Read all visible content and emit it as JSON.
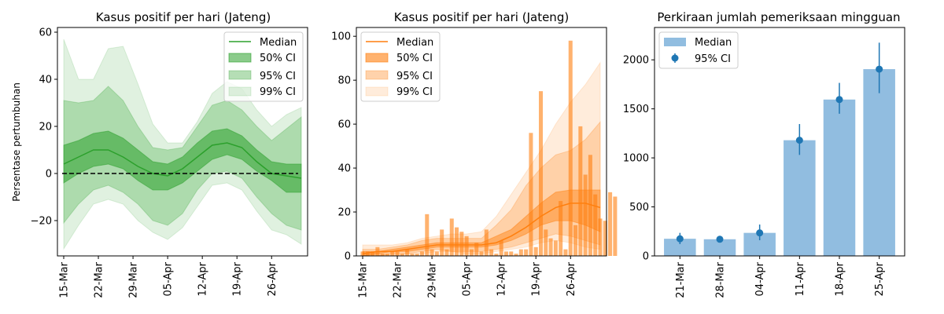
{
  "chart_data": [
    {
      "type": "area",
      "title": "Kasus positif per hari (Jateng)",
      "ylabel": "Persentase pertumbuhan",
      "xlabel": "",
      "ylim": [
        -35,
        62
      ],
      "yticks": [
        -20,
        0,
        20,
        40,
        60
      ],
      "ytick_labels": [
        "−20",
        "0",
        "20",
        "40",
        "60"
      ],
      "x_start": "2020-03-15",
      "xticks": [
        "2020-03-15",
        "2020-03-22",
        "2020-03-29",
        "2020-04-05",
        "2020-04-12",
        "2020-04-19",
        "2020-04-26"
      ],
      "xtick_labels": [
        "15-Mar",
        "22-Mar",
        "29-Mar",
        "05-Apr",
        "12-Apr",
        "19-Apr",
        "26-Apr"
      ],
      "x_end": "2020-05-02",
      "reference_line": 0,
      "legend_position": "top-right",
      "legend": [
        "Median",
        "50% CI",
        "95% CI",
        "99% CI"
      ],
      "colors": {
        "median": "#2ca02c",
        "band": "#2ca02c",
        "refline": "#000000"
      },
      "samples": {
        "x": [
          "2020-03-15",
          "2020-03-18",
          "2020-03-21",
          "2020-03-24",
          "2020-03-27",
          "2020-03-30",
          "2020-04-02",
          "2020-04-05",
          "2020-04-08",
          "2020-04-11",
          "2020-04-14",
          "2020-04-17",
          "2020-04-20",
          "2020-04-23",
          "2020-04-26",
          "2020-04-29",
          "2020-05-02"
        ],
        "median": [
          4,
          7,
          10,
          10,
          7,
          3,
          0,
          -1,
          2,
          7,
          12,
          13,
          11,
          5,
          0,
          -1,
          -2
        ],
        "ci50_low": [
          -4,
          0,
          3,
          4,
          2,
          -3,
          -7,
          -7,
          -4,
          1,
          6,
          8,
          6,
          1,
          -3,
          -8,
          -8
        ],
        "ci50_high": [
          12,
          14,
          17,
          18,
          15,
          10,
          5,
          4,
          7,
          13,
          18,
          19,
          16,
          10,
          5,
          4,
          4
        ],
        "ci95_low": [
          -21,
          -13,
          -7,
          -5,
          -8,
          -13,
          -20,
          -22,
          -17,
          -7,
          0,
          1,
          -2,
          -10,
          -17,
          -22,
          -24
        ],
        "ci95_high": [
          31,
          30,
          31,
          37,
          31,
          20,
          11,
          10,
          11,
          20,
          29,
          31,
          27,
          20,
          14,
          19,
          24
        ],
        "ci99_low": [
          -32,
          -22,
          -13,
          -11,
          -13,
          -20,
          -25,
          -28,
          -23,
          -14,
          -5,
          -4,
          -7,
          -16,
          -24,
          -26,
          -30
        ],
        "ci99_high": [
          57,
          40,
          40,
          53,
          54,
          38,
          21,
          13,
          13,
          22,
          34,
          39,
          36,
          27,
          20,
          25,
          28
        ]
      }
    },
    {
      "type": "area",
      "title": "Kasus positif per hari (Jateng)",
      "xlabel": "",
      "ylabel": "",
      "ylim": [
        0,
        104
      ],
      "yticks": [
        0,
        20,
        40,
        60,
        80,
        100
      ],
      "ytick_labels": [
        "0",
        "20",
        "40",
        "60",
        "80",
        "100"
      ],
      "x_start": "2020-03-15",
      "xticks": [
        "2020-03-15",
        "2020-03-22",
        "2020-03-29",
        "2020-04-05",
        "2020-04-12",
        "2020-04-19",
        "2020-04-26"
      ],
      "xtick_labels": [
        "15-Mar",
        "22-Mar",
        "29-Mar",
        "05-Apr",
        "12-Apr",
        "19-Apr",
        "26-Apr"
      ],
      "x_end": "2020-05-02",
      "legend_position": "top-left",
      "legend": [
        "Median",
        "50% CI",
        "95% CI",
        "99% CI"
      ],
      "colors": {
        "median": "#ff7f0e",
        "band": "#ff7f0e",
        "bars": "#ff7f0e"
      },
      "bars": {
        "first_date": "2020-03-15",
        "values": [
          2,
          2,
          2,
          4,
          1,
          1,
          2,
          2,
          1,
          3,
          1,
          1,
          2,
          19,
          3,
          2,
          12,
          3,
          17,
          13,
          11,
          9,
          3,
          6,
          2,
          12,
          3,
          1,
          7,
          2,
          2,
          1,
          3,
          3,
          56,
          4,
          75,
          12,
          8,
          7,
          25,
          3,
          98,
          14,
          59,
          37,
          46,
          28,
          17,
          16,
          29,
          27
        ]
      },
      "samples": {
        "x": [
          "2020-03-15",
          "2020-03-18",
          "2020-03-21",
          "2020-03-24",
          "2020-03-27",
          "2020-03-30",
          "2020-04-02",
          "2020-04-05",
          "2020-04-08",
          "2020-04-11",
          "2020-04-14",
          "2020-04-17",
          "2020-04-20",
          "2020-04-23",
          "2020-04-26",
          "2020-04-29",
          "2020-05-02"
        ],
        "median": [
          1,
          2,
          2,
          3,
          4,
          5,
          5,
          5,
          5,
          6,
          9,
          13,
          18,
          22,
          24,
          24,
          22
        ],
        "ci50_low": [
          0,
          1,
          2,
          2,
          3,
          4,
          4,
          4,
          4,
          5,
          7,
          10,
          14,
          16,
          16,
          14,
          11
        ],
        "ci50_high": [
          2,
          2,
          3,
          4,
          5,
          6,
          6,
          6,
          6,
          9,
          12,
          18,
          24,
          29,
          30,
          30,
          30
        ],
        "ci95_low": [
          0,
          0,
          1,
          1,
          2,
          3,
          2,
          2,
          2,
          3,
          4,
          6,
          8,
          10,
          9,
          7,
          5
        ],
        "ci95_high": [
          3,
          3,
          4,
          5,
          7,
          8,
          8,
          8,
          8,
          14,
          21,
          32,
          40,
          46,
          48,
          53,
          61
        ],
        "ci99_low": [
          0,
          0,
          0,
          1,
          1,
          2,
          2,
          1,
          1,
          2,
          3,
          4,
          6,
          7,
          6,
          4,
          3
        ],
        "ci99_high": [
          5,
          5,
          5,
          6,
          8,
          9,
          10,
          10,
          11,
          18,
          28,
          38,
          48,
          60,
          70,
          78,
          88
        ]
      }
    },
    {
      "type": "bar",
      "title": "Perkiraan jumlah pemeriksaan mingguan",
      "xlabel": "",
      "ylabel": "",
      "categories": [
        "21-Mar",
        "28-Mar",
        "04-Apr",
        "11-Apr",
        "18-Apr",
        "25-Apr"
      ],
      "ylim": [
        0,
        2330
      ],
      "yticks": [
        0,
        500,
        1000,
        1500,
        2000
      ],
      "ytick_labels": [
        "0",
        "500",
        "1000",
        "1500",
        "2000"
      ],
      "legend_position": "top-left",
      "legend": [
        "Median",
        "95% CI"
      ],
      "colors": {
        "bars": "#91bde0",
        "points": "#1f77b4"
      },
      "series": [
        {
          "name": "Median",
          "values": [
            175,
            170,
            235,
            1180,
            1595,
            1905
          ]
        },
        {
          "name": "95% CI",
          "values": [
            175,
            170,
            235,
            1180,
            1595,
            1905
          ],
          "low": [
            120,
            140,
            160,
            1030,
            1450,
            1660
          ],
          "high": [
            235,
            200,
            320,
            1345,
            1765,
            2175
          ]
        }
      ]
    }
  ]
}
